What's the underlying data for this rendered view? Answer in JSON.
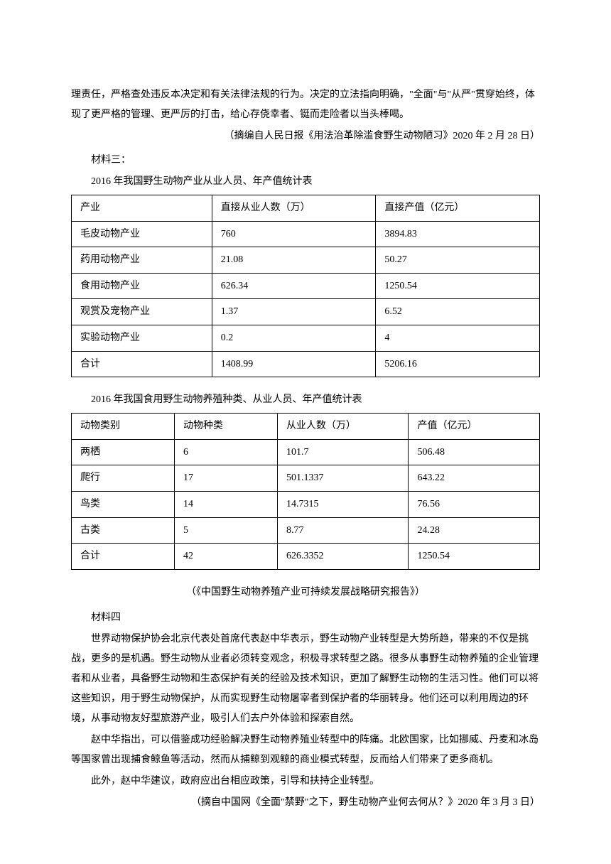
{
  "intro": {
    "p1": "理责任，严格查处违反本决定和有关法律法规的行为。决定的立法指向明确，\"全面\"与\"从严\"贯穿始终，体现了更严格的管理、更严厉的打击，给心存侥幸者、铤而走险者以当头棒喝。",
    "source": "（摘编自人民日报《用法治革除滥食野生动物陋习》2020 年 2 月 28 日）"
  },
  "material3": {
    "label": "材料三：",
    "caption1": "2016 年我国野生动物产业从业人员、年产值统计表",
    "table1": {
      "columns": [
        "产业",
        "直接从业人数（万）",
        "直接产值（亿元）"
      ],
      "rows": [
        [
          "毛皮动物产业",
          "760",
          "3894.83"
        ],
        [
          "药用动物产业",
          "21.08",
          "50.27"
        ],
        [
          "食用动物产业",
          "626.34",
          "1250.54"
        ],
        [
          "观赏及宠物产业",
          "1.37",
          "6.52"
        ],
        [
          "实验动物产业",
          "0.2",
          "4"
        ],
        [
          "合计",
          "1408.99",
          "5206.16"
        ]
      ]
    },
    "caption2": "2016 年我国食用野生动物养殖种类、从业人员、年产值统计表",
    "table2": {
      "columns": [
        "动物类别",
        "动物种类",
        "从业人数（万）",
        "产值（亿元）"
      ],
      "rows": [
        [
          "两栖",
          "6",
          "101.7",
          "506.48"
        ],
        [
          "爬行",
          "17",
          "501.1337",
          "643.22"
        ],
        [
          "鸟类",
          "14",
          "14.7315",
          "76.56"
        ],
        [
          "古类",
          "5",
          "8.77",
          "24.28"
        ],
        [
          "合计",
          "42",
          "626.3352",
          "1250.54"
        ]
      ]
    },
    "source": "（《中国野生动物养殖产业可持续发展战略研究报告》）"
  },
  "material4": {
    "label": "材料四",
    "p1": "世界动物保护协会北京代表处首席代表赵中华表示，野生动物产业转型是大势所趋，带来的不仅是挑战，更多的是机遇。野生动物从业者必须转变观念，积极寻求转型之路。很多从事野生动物养殖的企业管理者和从业者，具备野生动物和生态保护有关的经验及技术知识，更加了解野生动物的生活习性。他们可以将这些知识，用于野生动物保护，从而实现野生动物屠宰者到保护者的华丽转身。他们还可以利用周边的环境，从事动物友好型旅游产业，吸引人们去户外体验和探索自然。",
    "p2": "赵中华指出，可以借鉴成功经验解决野生动物养殖业转型中的阵痛。北欧国家，比如挪威、丹麦和冰岛等国家曾出现捕食鲸鱼等活动，然而从捕鲸到观鲸的商业模式转型，反而给人们带来了更多商机。",
    "p3": "此外，赵中华建议，政府应出台相应政策，引导和扶持企业转型。",
    "source": "（摘自中国网《全面\"禁野\"之下，野生动物产业何去何从？》2020 年 3 月 3 日）"
  }
}
